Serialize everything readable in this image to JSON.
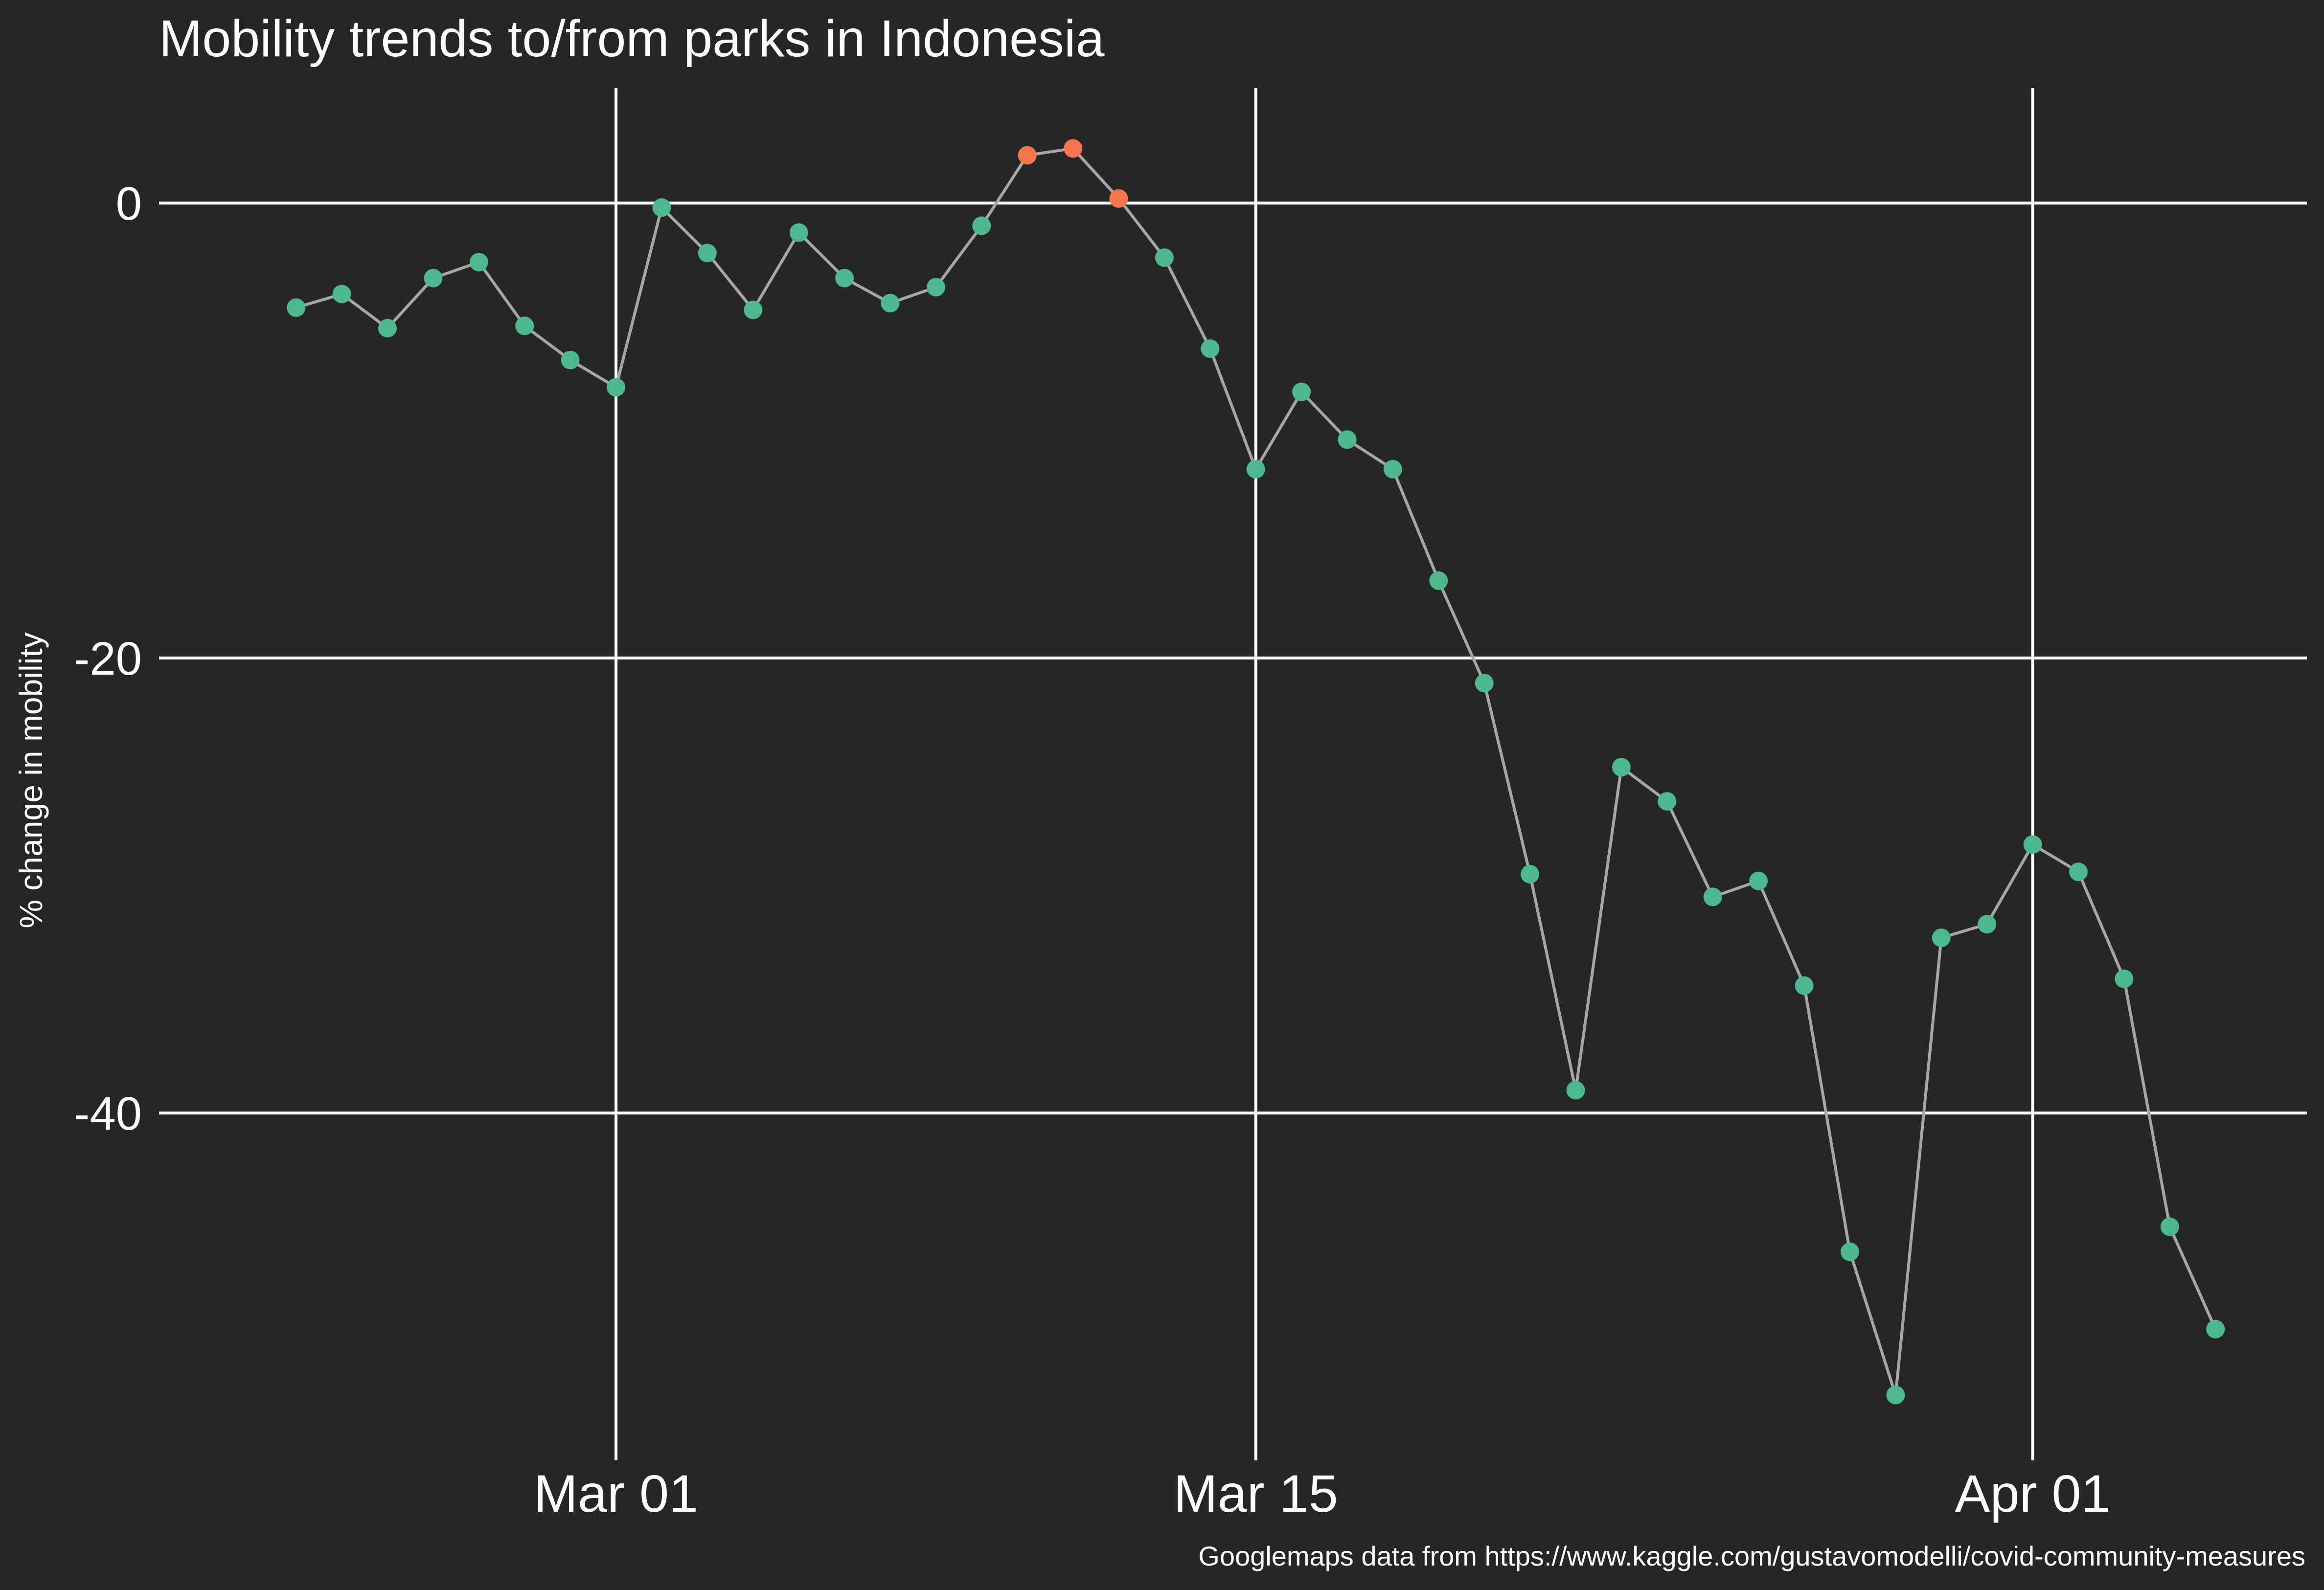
{
  "chart_data": {
    "type": "line",
    "title": "Mobility trends to/from parks in Indonesia",
    "xlabel": "",
    "ylabel": "% change in mobility",
    "caption": "Googlemaps data from https://www.kaggle.com/gustavomodelli/covid-community-measures",
    "x_ticks": [
      {
        "date": "2020-03-01",
        "label": "Mar 01"
      },
      {
        "date": "2020-03-15",
        "label": "Mar 15"
      },
      {
        "date": "2020-04-01",
        "label": "Apr 01"
      }
    ],
    "y_ticks": [
      0,
      -20,
      -40
    ],
    "ylim": [
      -57,
      5
    ],
    "xlim": [
      "2020-02-20",
      "2020-04-07"
    ],
    "grid": true,
    "colors": {
      "background": "#262626",
      "line": "#a6a6a6",
      "point_negative": "#4db88f",
      "point_positive": "#f5754e",
      "grid": "#ffffff"
    },
    "series": [
      {
        "x": [
          "2020-02-23",
          "2020-02-24",
          "2020-02-25",
          "2020-02-26",
          "2020-02-27",
          "2020-02-28",
          "2020-02-29",
          "2020-03-01",
          "2020-03-02",
          "2020-03-03",
          "2020-03-04",
          "2020-03-05",
          "2020-03-06",
          "2020-03-07",
          "2020-03-08",
          "2020-03-09",
          "2020-03-10",
          "2020-03-11",
          "2020-03-12",
          "2020-03-13",
          "2020-03-14",
          "2020-03-15",
          "2020-03-16",
          "2020-03-17",
          "2020-03-18",
          "2020-03-19",
          "2020-03-20",
          "2020-03-21",
          "2020-03-22",
          "2020-03-23",
          "2020-03-24",
          "2020-03-25",
          "2020-03-26",
          "2020-03-27",
          "2020-03-28",
          "2020-03-29",
          "2020-03-30",
          "2020-03-31",
          "2020-04-01",
          "2020-04-02",
          "2020-04-03",
          "2020-04-04",
          "2020-04-05"
        ],
        "values": [
          -4.6,
          -4.0,
          -5.5,
          -3.3,
          -2.6,
          -5.4,
          -6.9,
          -8.1,
          -0.2,
          -2.2,
          -4.7,
          -1.3,
          -3.3,
          -4.4,
          -3.7,
          -1.0,
          2.1,
          2.4,
          0.2,
          -2.4,
          -6.4,
          -11.7,
          -8.3,
          -10.4,
          -11.7,
          -16.6,
          -21.1,
          -29.5,
          -39.0,
          -24.8,
          -26.3,
          -30.5,
          -29.8,
          -34.4,
          -46.1,
          -52.4,
          -32.3,
          -31.7,
          -28.2,
          -29.4,
          -34.1,
          -45.0,
          -49.5
        ]
      }
    ]
  }
}
